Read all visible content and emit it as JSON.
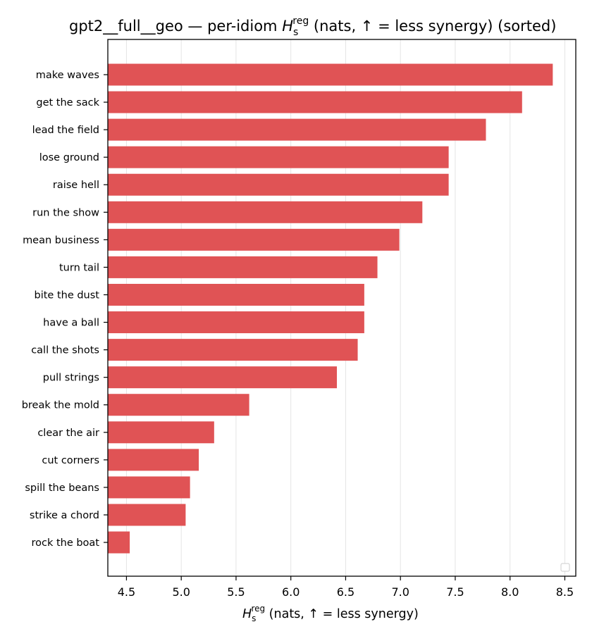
{
  "chart_data": {
    "type": "bar",
    "orientation": "horizontal",
    "title_pre": "gpt2__full__geo — per-idiom ",
    "title_sym": "H",
    "title_sub": "s",
    "title_sup": "reg",
    "title_post": " (nats, ↑ = less synergy) (sorted)",
    "xlabel_sym": "H",
    "xlabel_sub": "s",
    "xlabel_sup": "reg",
    "xlabel_post": " (nats, ↑ = less synergy)",
    "categories": [
      "make waves",
      "get the sack",
      "lead the field",
      "lose ground",
      "raise hell",
      "run the show",
      "mean business",
      "turn tail",
      "bite the dust",
      "have a ball",
      "call the shots",
      "pull strings",
      "break the mold",
      "clear the air",
      "cut corners",
      "spill the beans",
      "strike a chord",
      "rock the boat"
    ],
    "values": [
      8.39,
      8.11,
      7.78,
      7.44,
      7.44,
      7.2,
      6.99,
      6.79,
      6.67,
      6.67,
      6.61,
      6.42,
      5.62,
      5.3,
      5.16,
      5.08,
      5.04,
      4.53
    ],
    "xlim": [
      4.33,
      8.6
    ],
    "xticks": [
      "4.5",
      "5.0",
      "5.5",
      "6.0",
      "6.5",
      "7.0",
      "7.5",
      "8.0",
      "8.5"
    ],
    "bar_color": "#e05355",
    "grid": "vertical",
    "legend": "bottom-right (empty)"
  }
}
